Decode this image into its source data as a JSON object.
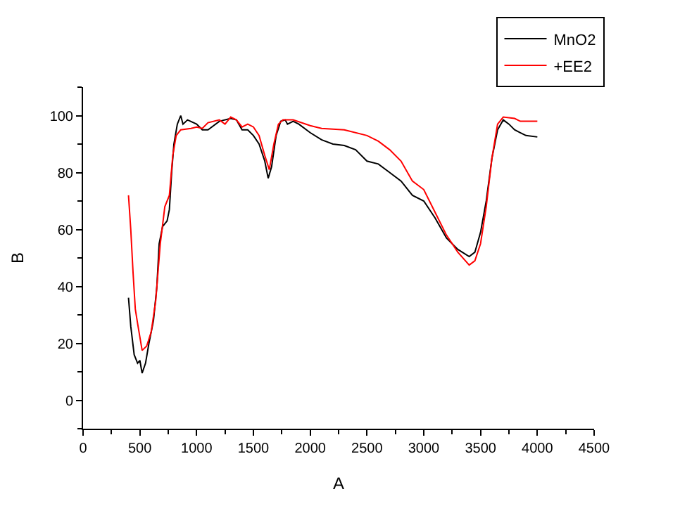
{
  "chart_data": {
    "type": "line",
    "xlabel": "A",
    "ylabel": "B",
    "xlim": [
      0,
      4500
    ],
    "xticks": [
      0,
      500,
      1000,
      1500,
      2000,
      2500,
      3000,
      3500,
      4000,
      4500
    ],
    "ylim": [
      -10,
      110
    ],
    "yticks": [
      0,
      20,
      40,
      60,
      80,
      100
    ],
    "legend": "top right",
    "marker": "none",
    "line_style": "solid",
    "series": [
      {
        "name": "MnO2",
        "color": "#000000",
        "x": [
          400,
          420,
          450,
          480,
          500,
          520,
          550,
          580,
          620,
          650,
          670,
          700,
          740,
          760,
          780,
          800,
          830,
          860,
          880,
          920,
          1000,
          1050,
          1100,
          1200,
          1300,
          1350,
          1400,
          1450,
          1500,
          1550,
          1600,
          1630,
          1660,
          1700,
          1740,
          1780,
          1800,
          1850,
          1900,
          2000,
          2100,
          2200,
          2300,
          2400,
          2500,
          2600,
          2700,
          2800,
          2900,
          3000,
          3100,
          3200,
          3300,
          3400,
          3450,
          3500,
          3550,
          3600,
          3650,
          3700,
          3750,
          3800,
          3850,
          3900,
          4000
        ],
        "values": [
          36,
          26,
          16,
          13,
          14,
          9.5,
          13,
          20,
          28,
          40,
          55,
          61,
          63,
          67,
          80,
          90,
          97,
          100,
          97,
          98.5,
          97,
          95,
          95,
          98,
          99,
          98.5,
          95,
          95,
          93,
          90,
          84,
          78,
          82,
          93,
          98,
          98.5,
          97,
          98,
          97,
          94,
          91.5,
          90,
          89.5,
          88,
          84,
          83,
          80,
          77,
          72,
          70,
          64,
          57,
          53,
          50.5,
          52,
          59,
          70,
          85,
          95,
          98.5,
          97,
          95,
          94,
          93,
          92.5
        ]
      },
      {
        "name": "+EE2",
        "color": "#ff0000",
        "x": [
          400,
          420,
          440,
          460,
          480,
          520,
          560,
          600,
          640,
          680,
          720,
          760,
          790,
          820,
          860,
          950,
          1000,
          1050,
          1100,
          1200,
          1250,
          1300,
          1350,
          1400,
          1450,
          1500,
          1550,
          1600,
          1640,
          1680,
          1720,
          1760,
          1850,
          2000,
          2100,
          2300,
          2500,
          2600,
          2700,
          2800,
          2900,
          3000,
          3100,
          3200,
          3300,
          3400,
          3450,
          3500,
          3550,
          3600,
          3650,
          3700,
          3800,
          3850,
          4000
        ],
        "values": [
          72,
          60,
          45,
          32,
          27,
          17.5,
          19,
          24,
          35,
          55,
          68,
          72,
          86,
          93,
          95,
          95.5,
          96,
          95.5,
          97.5,
          98.5,
          97,
          99.5,
          98.5,
          96,
          97,
          96,
          93,
          86,
          81,
          90,
          97,
          98.5,
          98.5,
          96.5,
          95.5,
          95,
          93,
          91,
          88,
          84,
          77,
          74,
          66,
          58,
          52,
          47.5,
          49,
          55,
          68,
          85,
          97,
          99.5,
          99,
          98,
          98
        ]
      }
    ]
  }
}
